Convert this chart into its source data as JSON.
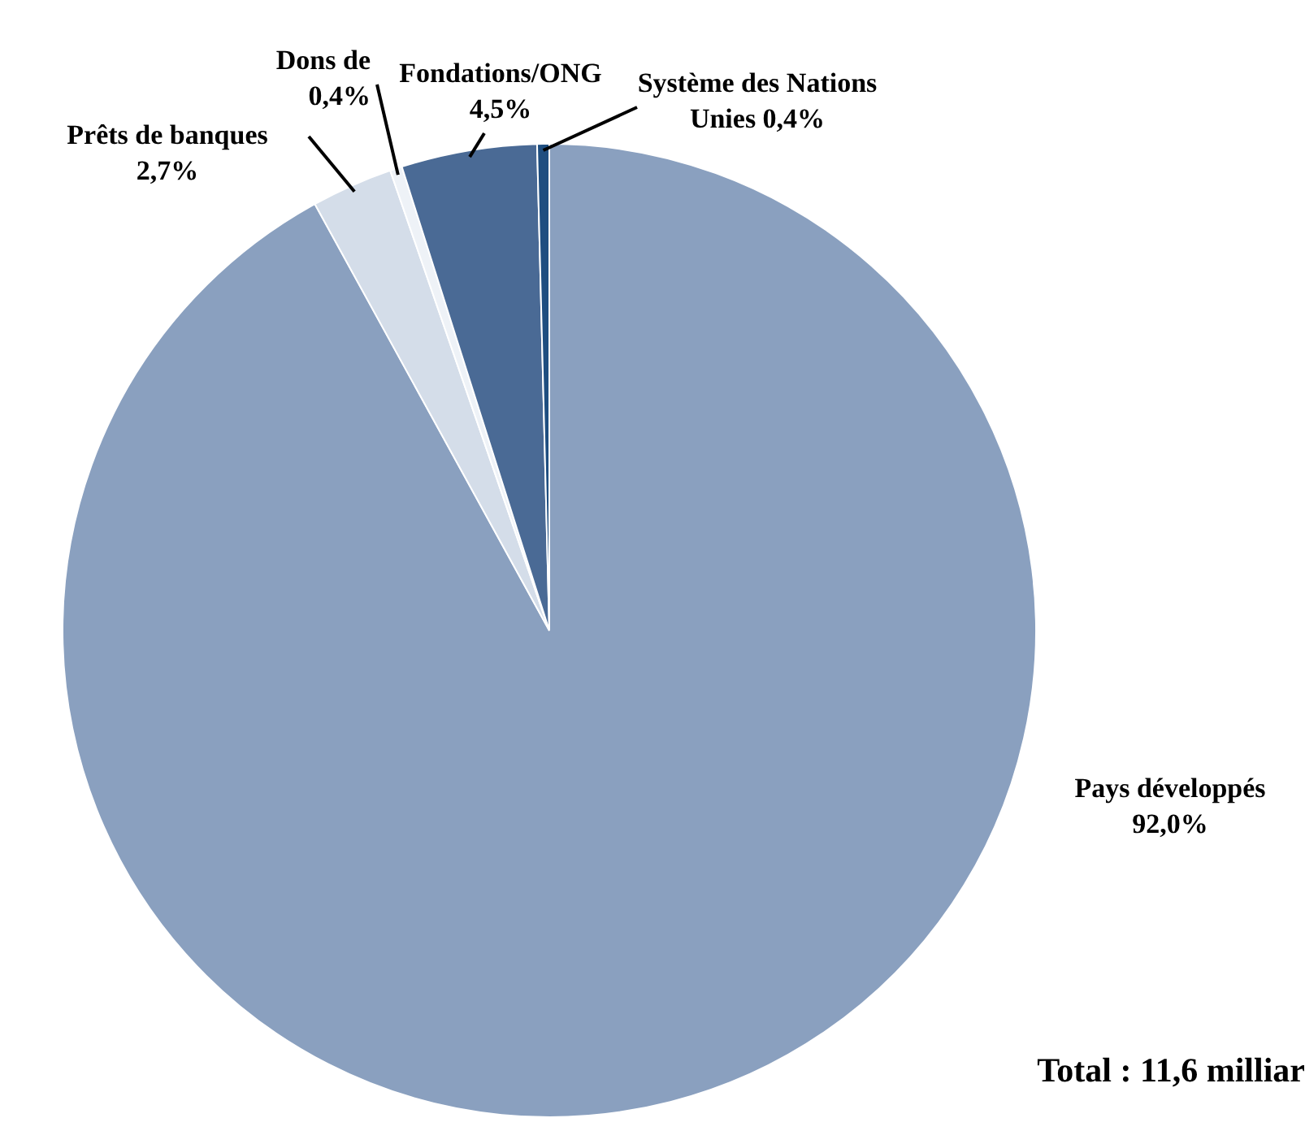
{
  "chart_data": {
    "type": "pie",
    "categories": [
      "Pays développés",
      "Prêts de banques",
      "Dons de",
      "Fondations/ONG",
      "Système des Nations Unies"
    ],
    "values": [
      92.0,
      2.7,
      0.4,
      4.5,
      0.4
    ],
    "value_labels": [
      "92,0%",
      "2,7%",
      "0,4%",
      "4,5%",
      "0,4%"
    ],
    "colors": [
      "#8aa0bf",
      "#d4dde9",
      "#eef2f7",
      "#4a6a95",
      "#1f4e80"
    ],
    "annotations": [
      "Total : 11,6 milliar"
    ]
  }
}
